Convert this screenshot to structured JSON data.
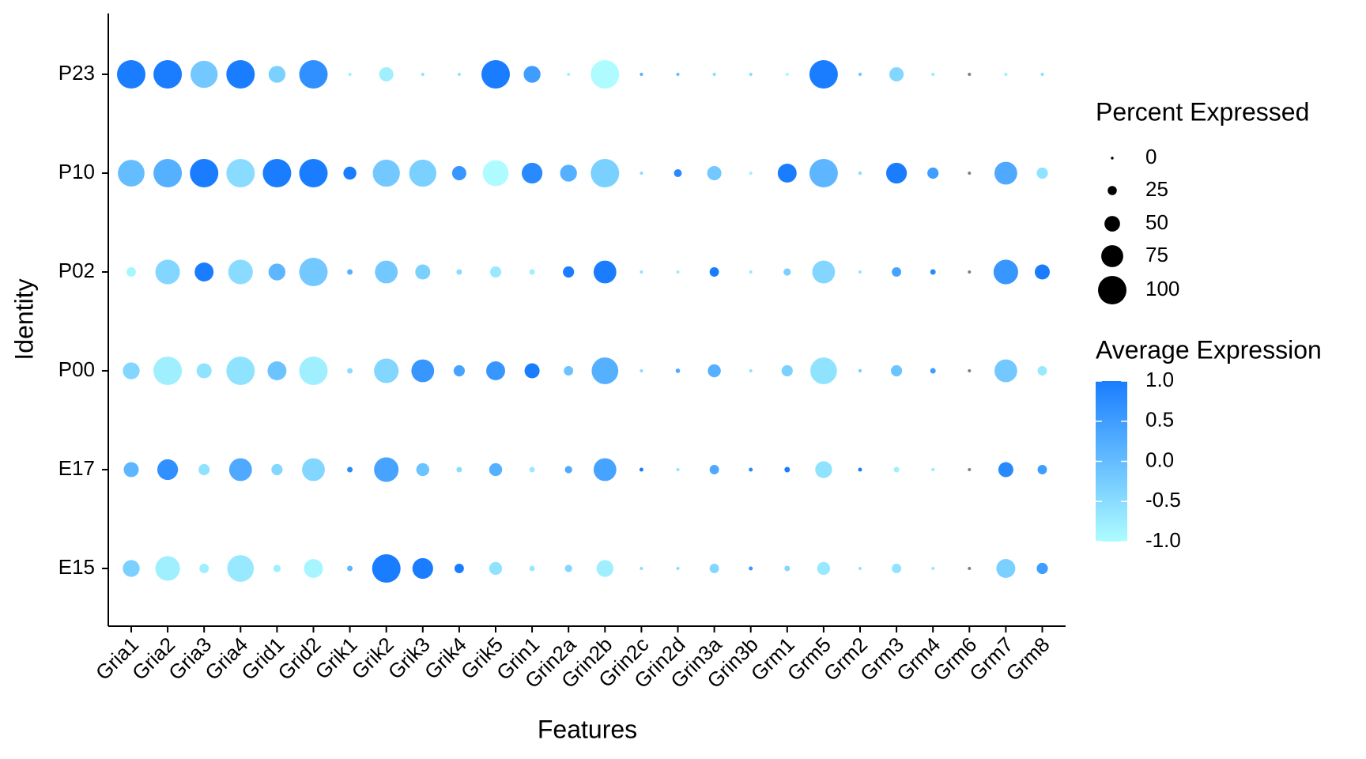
{
  "chart_data": {
    "type": "dot",
    "x_label": "Features",
    "y_label": "Identity",
    "features": [
      "Gria1",
      "Gria2",
      "Gria3",
      "Gria4",
      "Grid1",
      "Grid2",
      "Grik1",
      "Grik2",
      "Grik3",
      "Grik4",
      "Grik5",
      "Grin1",
      "Grin2a",
      "Grin2b",
      "Grin2c",
      "Grin2d",
      "Grin3a",
      "Grin3b",
      "Grm1",
      "Grm5",
      "Grm2",
      "Grm3",
      "Grm4",
      "Grm6",
      "Grm7",
      "Grm8"
    ],
    "identities": [
      "E15",
      "E17",
      "P00",
      "P02",
      "P10",
      "P23"
    ],
    "percent_expressed": [
      [
        55,
        85,
        26,
        93,
        18,
        63,
        11,
        100,
        70,
        26,
        40,
        11,
        18,
        55,
        2,
        2,
        26,
        5,
        11,
        40,
        2,
        26,
        2,
        2,
        63,
        33
      ],
      [
        48,
        70,
        33,
        78,
        33,
        78,
        11,
        85,
        40,
        11,
        40,
        11,
        18,
        78,
        5,
        2,
        26,
        5,
        11,
        55,
        5,
        11,
        2,
        2,
        48,
        26
      ],
      [
        55,
        100,
        48,
        100,
        63,
        100,
        11,
        85,
        78,
        33,
        63,
        48,
        26,
        93,
        2,
        7,
        40,
        2,
        33,
        93,
        3,
        33,
        11,
        2,
        78,
        26
      ],
      [
        26,
        85,
        63,
        85,
        55,
        100,
        11,
        78,
        48,
        11,
        33,
        11,
        33,
        78,
        2,
        2,
        26,
        2,
        18,
        78,
        2,
        26,
        11,
        2,
        85,
        48
      ],
      [
        93,
        100,
        100,
        100,
        100,
        100,
        40,
        95,
        95,
        45,
        90,
        70,
        55,
        100,
        2,
        20,
        45,
        2,
        63,
        100,
        3,
        70,
        33,
        2,
        78,
        33
      ],
      [
        100,
        100,
        95,
        100,
        55,
        100,
        2,
        45,
        2,
        2,
        100,
        55,
        2,
        100,
        2,
        2,
        2,
        2,
        2,
        100,
        3,
        45,
        2,
        2,
        2,
        2
      ]
    ],
    "avg_expression": [
      [
        -0.3,
        -0.8,
        -0.8,
        -0.7,
        -0.8,
        -0.9,
        0.1,
        1.0,
        1.0,
        1.0,
        -0.6,
        -0.7,
        -0.4,
        -0.8,
        -0.5,
        -0.5,
        -0.4,
        0.6,
        -0.4,
        -0.7,
        -0.6,
        -0.6,
        -0.7,
        null,
        -0.3,
        0.5
      ],
      [
        0.1,
        0.7,
        -0.6,
        0.3,
        -0.4,
        -0.4,
        0.8,
        0.4,
        -0.1,
        -0.5,
        0.2,
        -0.7,
        0.3,
        0.4,
        1.0,
        -0.6,
        0.3,
        0.8,
        1.0,
        -0.6,
        1.0,
        -0.8,
        -0.7,
        null,
        0.8,
        0.5
      ],
      [
        -0.4,
        -0.8,
        -0.6,
        -0.6,
        -0.1,
        -0.8,
        -0.5,
        -0.4,
        0.6,
        0.4,
        0.6,
        1.0,
        -0.1,
        0.2,
        -0.5,
        0.3,
        0.2,
        -0.6,
        -0.3,
        -0.6,
        -0.3,
        -0.1,
        0.5,
        null,
        -0.2,
        -0.7
      ],
      [
        -0.9,
        -0.4,
        1.0,
        -0.5,
        0.1,
        -0.2,
        0.2,
        -0.2,
        -0.3,
        -0.5,
        -0.7,
        -0.8,
        1.0,
        1.0,
        -0.6,
        -0.7,
        1.0,
        -0.7,
        -0.3,
        -0.4,
        -0.6,
        0.4,
        0.8,
        null,
        0.6,
        1.0
      ],
      [
        0,
        0.2,
        1.0,
        -0.5,
        1.0,
        1.0,
        1.0,
        -0.2,
        -0.3,
        0.6,
        -1.0,
        0.8,
        0.2,
        -0.3,
        -0.5,
        0.8,
        -0.2,
        -0.8,
        1.0,
        0.1,
        -0.5,
        1.0,
        0.5,
        null,
        0.3,
        -0.6
      ],
      [
        1.0,
        1.0,
        -0.2,
        1.0,
        -0.3,
        0.7,
        -0.8,
        -0.8,
        -0.6,
        -0.6,
        1.0,
        0.5,
        -0.8,
        -1.0,
        0.2,
        0,
        -0.5,
        -0.5,
        -0.9,
        1.0,
        -0.2,
        -0.4,
        -0.7,
        null,
        -0.8,
        -0.5
      ]
    ],
    "size_legend_title": "Percent Expressed",
    "size_lim": [
      0,
      100
    ],
    "size_ticks": [
      0,
      25,
      50,
      75,
      100
    ],
    "color_legend_title": "Average Expression",
    "color_lim": [
      -1,
      1
    ],
    "color_ticks": [
      {
        "value": 1,
        "label": "1.0"
      },
      0.5,
      {
        "value": 0,
        "label": "0.0"
      },
      -0.5,
      {
        "value": -1,
        "label": "-1.0"
      }
    ],
    "low_color": "#aefcff",
    "high_color": "#1a7dff",
    "na_color": "#808080"
  }
}
